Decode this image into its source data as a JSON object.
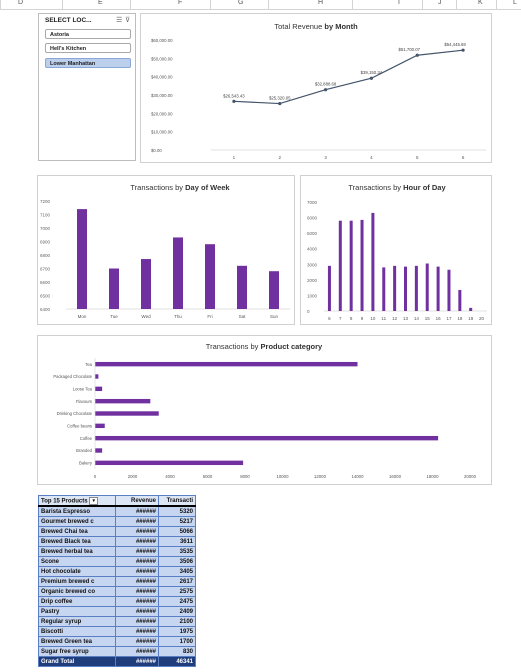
{
  "columns": [
    "D",
    "E",
    "F",
    "G",
    "H",
    "I",
    "J",
    "K",
    "L"
  ],
  "slicer": {
    "title": "SELECT LOC...",
    "multi_icon": "multi-select-icon",
    "clear_icon": "clear-filter-icon",
    "items": [
      {
        "label": "Astoria",
        "selected": false
      },
      {
        "label": "Hell's Kitchen",
        "selected": false
      },
      {
        "label": "Lower Manhattan",
        "selected": true
      }
    ]
  },
  "colors": {
    "bar": "#7030a0",
    "line": "#44546a",
    "table_row": "#c7d6f0",
    "table_total": "#1f3d7a"
  },
  "charts": {
    "revenue_by_month": {
      "type": "line",
      "title_normal": "Total Revenue",
      "title_bold": "by Month",
      "x": [
        "1",
        "2",
        "3",
        "4",
        "5",
        "6"
      ],
      "values": [
        26543.43,
        25320.05,
        32888.68,
        39150.34,
        51700.07,
        54445.69
      ],
      "data_labels": [
        "$26,543.43",
        "$25,320.05",
        "$32,888.68",
        "$39,150.34",
        "$51,700.07",
        "$54,445.69"
      ],
      "y_ticks": [
        "$0.00",
        "$10,000.00",
        "$20,000.00",
        "$30,000.00",
        "$40,000.00",
        "$50,000.00",
        "$60,000.00"
      ],
      "ylim": [
        0,
        60000
      ],
      "grid": false
    },
    "transactions_by_day": {
      "type": "bar",
      "title_normal": "Transactions by",
      "title_bold": "Day of Week",
      "categories": [
        "Mon",
        "Tue",
        "Wed",
        "Thu",
        "Fri",
        "Sat",
        "Sun"
      ],
      "values": [
        7140,
        6700,
        6770,
        6930,
        6880,
        6720,
        6680
      ],
      "y_ticks": [
        "6400",
        "6500",
        "6600",
        "6700",
        "6800",
        "6900",
        "7000",
        "7100",
        "7200"
      ],
      "ylim": [
        6400,
        7200
      ]
    },
    "transactions_by_hour": {
      "type": "bar",
      "title_normal": "Transactions by",
      "title_bold": "Hour of Day",
      "categories": [
        "6",
        "7",
        "8",
        "9",
        "10",
        "11",
        "12",
        "13",
        "14",
        "15",
        "16",
        "17",
        "18",
        "19",
        "20"
      ],
      "values": [
        2900,
        5800,
        5800,
        5850,
        6300,
        2800,
        2900,
        2850,
        2900,
        3050,
        2850,
        2650,
        1350,
        200,
        0
      ],
      "y_ticks": [
        "0",
        "1000",
        "2000",
        "3000",
        "4000",
        "5000",
        "6000",
        "7000"
      ],
      "ylim": [
        0,
        7000
      ]
    },
    "transactions_by_category": {
      "type": "bar",
      "orientation": "horizontal",
      "title_normal": "Transactions by",
      "title_bold": "Product category",
      "categories": [
        "Tea",
        "Packaged Chocolate",
        "Loose Tea",
        "Flavours",
        "Drinking Chocolate",
        "Coffee beans",
        "Coffee",
        "Branded",
        "Bakery"
      ],
      "values": [
        14000,
        180,
        380,
        2950,
        3400,
        520,
        18300,
        380,
        7900
      ],
      "x_ticks": [
        "0",
        "2000",
        "4000",
        "6000",
        "8000",
        "10000",
        "12000",
        "14000",
        "16000",
        "18000",
        "20000"
      ],
      "xlim": [
        0,
        20000
      ]
    }
  },
  "pivot": {
    "headers": [
      "Top 15 Products",
      "Revenue",
      "Transacti"
    ],
    "filter_icon": "filter-dropdown-icon",
    "rows": [
      [
        "Barista Espresso",
        "######",
        "5320"
      ],
      [
        "Gourmet brewed c",
        "######",
        "5217"
      ],
      [
        "Brewed Chai tea",
        "######",
        "5066"
      ],
      [
        "Brewed Black tea",
        "######",
        "3611"
      ],
      [
        "Brewed herbal tea",
        "######",
        "3535"
      ],
      [
        "Scone",
        "######",
        "3506"
      ],
      [
        "Hot chocolate",
        "######",
        "3405"
      ],
      [
        "Premium brewed c",
        "######",
        "2617"
      ],
      [
        "Organic brewed co",
        "######",
        "2575"
      ],
      [
        "Drip coffee",
        "######",
        "2475"
      ],
      [
        "Pastry",
        "######",
        "2409"
      ],
      [
        "Regular syrup",
        "######",
        "2100"
      ],
      [
        "Biscotti",
        "######",
        "1975"
      ],
      [
        "Brewed Green tea",
        "######",
        "1700"
      ],
      [
        "Sugar free syrup",
        "######",
        "830"
      ]
    ],
    "total": [
      "Grand Total",
      "######",
      "46341"
    ]
  }
}
